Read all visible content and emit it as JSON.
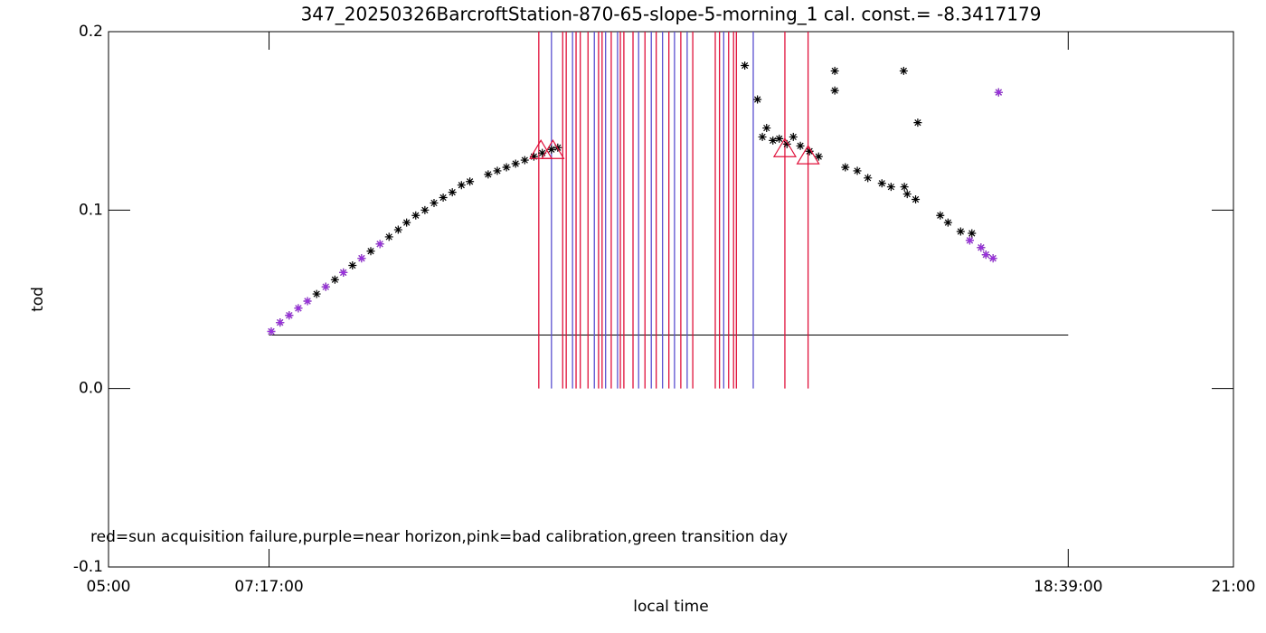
{
  "chart_data": {
    "type": "scatter",
    "title": "347_20250326BarcroftStation-870-65-slope-5-morning_1 cal. const.= -8.3417179",
    "xlabel": "local time",
    "ylabel": "tod",
    "annotation": "red=sun acquisition failure,purple=near horizon,pink=bad calibration,green transition day",
    "xlim": [
      5,
      21
    ],
    "ylim": [
      -0.1,
      0.2
    ],
    "xticks": [
      {
        "value": 5,
        "label": "05:00"
      },
      {
        "value": 7.2833,
        "label": "07:17:00"
      },
      {
        "value": 18.65,
        "label": "18:39:00"
      },
      {
        "value": 21,
        "label": "21:00"
      }
    ],
    "yticks": [
      -0.1,
      {
        "value": 0,
        "label": "0.0"
      },
      0.1,
      0.2
    ],
    "series": [
      {
        "color": "#000000",
        "x": [
          7.315,
          7.44,
          7.57,
          7.7,
          7.83,
          7.96,
          8.09,
          8.22,
          8.34,
          8.47,
          8.6,
          8.73,
          8.86,
          8.99,
          9.12,
          9.24,
          9.37,
          9.5,
          9.63,
          9.76,
          9.89,
          10.02,
          10.14,
          10.4,
          10.53,
          10.66,
          10.79,
          10.92,
          11.05,
          11.17,
          11.3,
          11.39,
          14.05,
          14.23,
          14.3,
          14.36,
          14.45,
          14.54,
          14.65,
          14.74,
          14.84,
          14.97,
          15.1,
          15.33,
          15.33,
          15.48,
          15.65,
          15.8,
          16.0,
          16.13,
          16.31,
          16.32,
          16.36,
          16.48,
          16.51,
          16.83,
          16.94,
          17.12,
          17.25,
          17.28,
          17.41,
          17.48,
          17.58,
          17.66
        ],
        "values": [
          0.032,
          0.037,
          0.041,
          0.045,
          0.049,
          0.053,
          0.057,
          0.061,
          0.065,
          0.069,
          0.073,
          0.077,
          0.081,
          0.085,
          0.089,
          0.093,
          0.097,
          0.1,
          0.104,
          0.107,
          0.11,
          0.114,
          0.116,
          0.12,
          0.122,
          0.124,
          0.126,
          0.128,
          0.13,
          0.132,
          0.134,
          0.135,
          0.181,
          0.162,
          0.141,
          0.146,
          0.139,
          0.14,
          0.137,
          0.141,
          0.136,
          0.133,
          0.13,
          0.167,
          0.178,
          0.124,
          0.122,
          0.118,
          0.115,
          0.113,
          0.178,
          0.113,
          0.109,
          0.106,
          0.149,
          0.097,
          0.093,
          0.088,
          0.083,
          0.087,
          0.079,
          0.075,
          0.073,
          0.166
        ]
      },
      {
        "color": "#9b30e0",
        "x": [
          7.315,
          7.44,
          7.57,
          7.7,
          7.83,
          8.09,
          8.34,
          8.6,
          8.86,
          17.25,
          17.41,
          17.48,
          17.58,
          17.66
        ],
        "values": [
          0.032,
          0.037,
          0.041,
          0.045,
          0.049,
          0.057,
          0.065,
          0.073,
          0.081,
          0.083,
          0.079,
          0.075,
          0.073,
          0.166
        ]
      }
    ],
    "vlines": [
      {
        "color": "#e0103a",
        "ymin": 0,
        "ymax": 0.2,
        "x": [
          11.12,
          11.46,
          11.51,
          11.65,
          11.71,
          11.82,
          11.97,
          12.02,
          12.15,
          12.28,
          12.33,
          12.46,
          12.63,
          12.79,
          12.97,
          13.14,
          13.31,
          13.63,
          13.69,
          13.82,
          13.89,
          13.93,
          14.62,
          14.95
        ]
      },
      {
        "color": "#5a4fd0",
        "ymin": 0,
        "ymax": 0.2,
        "x": [
          11.3,
          11.6,
          11.91,
          12.07,
          12.24,
          12.54,
          12.72,
          12.88,
          13.05,
          13.23,
          13.75,
          14.17
        ]
      }
    ],
    "triangles": {
      "color": "#e0103a",
      "x": [
        11.15,
        11.32,
        14.62,
        14.95
      ],
      "values": [
        0.133,
        0.133,
        0.134,
        0.13
      ]
    },
    "hline": {
      "color": "#000000",
      "value": 0.03,
      "x": [
        7.2833,
        18.65
      ]
    }
  }
}
